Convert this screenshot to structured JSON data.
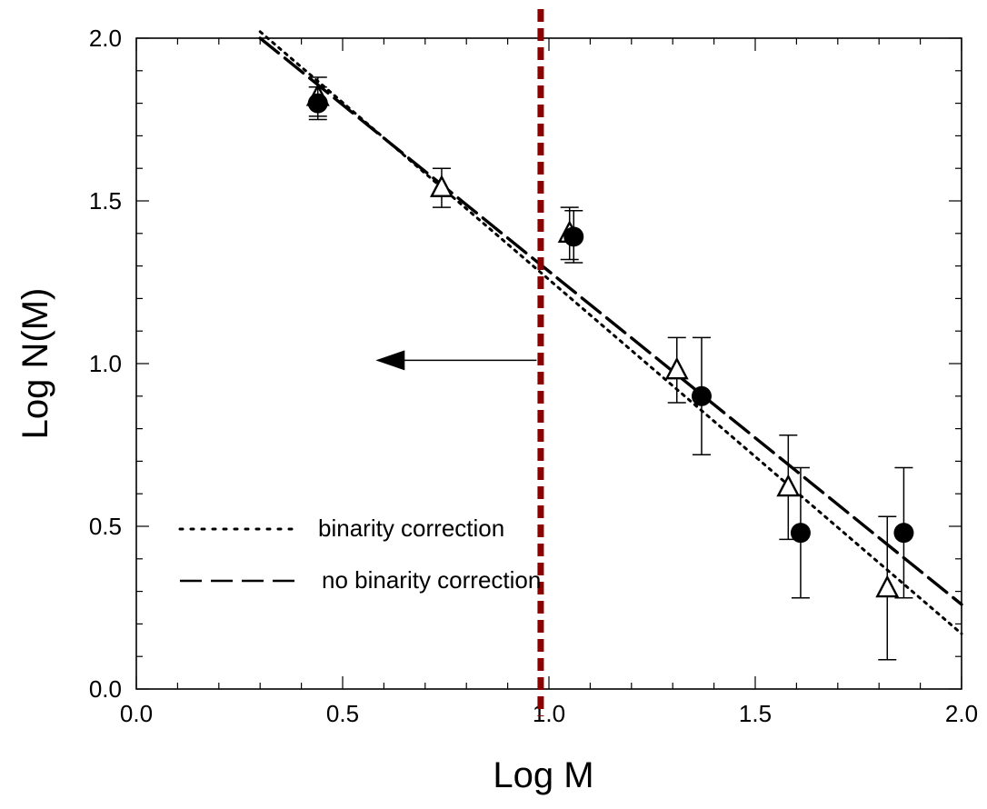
{
  "chart_data": {
    "type": "scatter",
    "title": "",
    "xlabel": "Log M",
    "ylabel": "Log N(M)",
    "xlim": [
      0.0,
      2.0
    ],
    "ylim": [
      0.0,
      2.0
    ],
    "x_ticks": [
      0.0,
      0.5,
      1.0,
      1.5,
      2.0
    ],
    "y_ticks": [
      0.0,
      0.5,
      1.0,
      1.5,
      2.0
    ],
    "x_tick_labels": [
      "0.0",
      "0.5",
      "1.0",
      "1.5",
      "2.0"
    ],
    "y_tick_labels": [
      "0.0",
      "0.5",
      "1.0",
      "1.5",
      "2.0"
    ],
    "grid": false,
    "series": [
      {
        "marker": "open-triangle",
        "points": [
          {
            "x": 0.44,
            "y": 1.82,
            "err": 0.06
          },
          {
            "x": 0.74,
            "y": 1.54,
            "err": 0.06
          },
          {
            "x": 1.05,
            "y": 1.4,
            "err": 0.08
          },
          {
            "x": 1.31,
            "y": 0.98,
            "err": 0.1
          },
          {
            "x": 1.58,
            "y": 0.62,
            "err": 0.16
          },
          {
            "x": 1.82,
            "y": 0.31,
            "err": 0.22
          }
        ]
      },
      {
        "marker": "filled-circle",
        "points": [
          {
            "x": 0.44,
            "y": 1.8,
            "err": 0.05
          },
          {
            "x": 1.06,
            "y": 1.39,
            "err": 0.08
          },
          {
            "x": 1.37,
            "y": 0.9,
            "err": 0.18
          },
          {
            "x": 1.61,
            "y": 0.48,
            "err": 0.2
          },
          {
            "x": 1.86,
            "y": 0.48,
            "err": 0.2
          }
        ]
      }
    ],
    "fit_lines": [
      {
        "name": "binarity correction",
        "style": "dotted",
        "x": [
          0.3,
          2.0
        ],
        "y": [
          2.02,
          0.17
        ]
      },
      {
        "name": "no binarity correction",
        "style": "dashed",
        "x": [
          0.3,
          2.0
        ],
        "y": [
          2.0,
          0.26
        ]
      }
    ],
    "legend": {
      "placement": "lower-left",
      "entries": [
        "binarity correction",
        "no binarity correction"
      ]
    },
    "annotations": {
      "vertical_marker": {
        "x": 0.98,
        "color": "#8b0000",
        "style": "dashed"
      },
      "arrow": {
        "from_x": 0.97,
        "to_x": 0.58,
        "y": 1.01,
        "direction": "left"
      }
    }
  }
}
